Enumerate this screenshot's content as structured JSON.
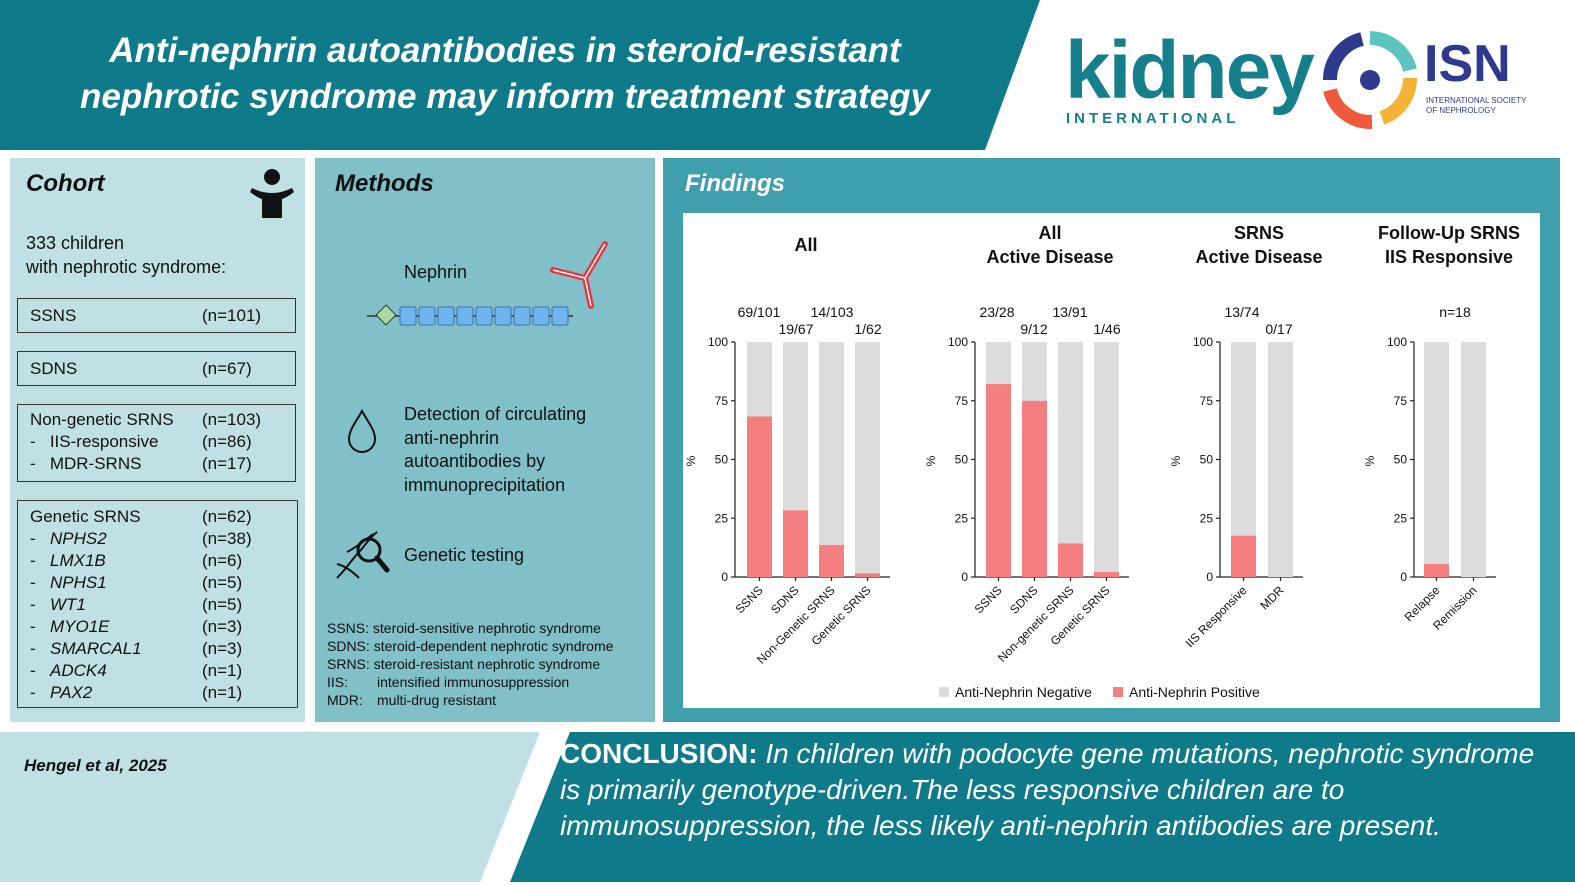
{
  "header": {
    "title_line1": "Anti-nephrin autoantibodies in steroid-resistant",
    "title_line2": "nephrotic syndrome may inform treatment strategy",
    "logo_kidney": "kidney",
    "logo_kidney_sub": "INTERNATIONAL",
    "logo_isn": "ISN",
    "logo_isn_sub1": "INTERNATIONAL SOCIETY",
    "logo_isn_sub2": "OF NEPHROLOGY"
  },
  "cohort": {
    "title": "Cohort",
    "intro_line1": "333 children",
    "intro_line2": "with nephrotic syndrome:",
    "ssns": {
      "label": "SSNS",
      "n": "(n=101)"
    },
    "sdns": {
      "label": "SDNS",
      "n": "(n=67)"
    },
    "nongenetic": [
      {
        "label": "Non-genetic SRNS",
        "n": "(n=103)"
      },
      {
        "label": "-   IIS-responsive",
        "n": "(n=86)"
      },
      {
        "label": "-   MDR-SRNS",
        "n": "(n=17)"
      }
    ],
    "genetic_header": {
      "label": "Genetic SRNS",
      "n": "(n=62)"
    },
    "genetic": [
      {
        "gene": "NPHS2",
        "n": "(n=38)"
      },
      {
        "gene": "LMX1B",
        "n": "(n=6)"
      },
      {
        "gene": "NPHS1",
        "n": "(n=5)"
      },
      {
        "gene": "WT1",
        "n": "(n=5)"
      },
      {
        "gene": "MYO1E",
        "n": "(n=3)"
      },
      {
        "gene": "SMARCAL1",
        "n": "(n=3)"
      },
      {
        "gene": "ADCK4",
        "n": "(n=1)"
      },
      {
        "gene": "PAX2",
        "n": "(n=1)"
      }
    ],
    "dash": "-"
  },
  "methods": {
    "title": "Methods",
    "nephrin_label": "Nephrin",
    "detection_lines": [
      "Detection of circulating",
      "anti-nephrin",
      "autoantibodies by",
      "immunoprecipitation"
    ],
    "genetic_testing": "Genetic testing",
    "abbreviations": [
      {
        "k": "SSNS:",
        "v": "steroid-sensitive nephrotic syndrome"
      },
      {
        "k": "SDNS:",
        "v": "steroid-dependent nephrotic syndrome"
      },
      {
        "k": "SRNS:",
        "v": "steroid-resistant nephrotic syndrome"
      },
      {
        "k": "IIS:",
        "v": "intensified immunosuppression"
      },
      {
        "k": "MDR:",
        "v": "multi-drug resistant"
      }
    ]
  },
  "findings": {
    "title": "Findings",
    "legend": {
      "negative": "Anti-Nephrin Negative",
      "positive": "Anti-Nephrin Positive"
    },
    "colors": {
      "negative": "#dcdcdc",
      "positive": "#f47f81"
    }
  },
  "chart_data": [
    {
      "type": "bar",
      "title": "All",
      "ylabel": "%",
      "ylim": [
        0,
        100
      ],
      "yticks": [
        0,
        25,
        50,
        75,
        100
      ],
      "categories": [
        "SSNS",
        "SDNS",
        "Non-Genetic SRNS",
        "Genetic SRNS"
      ],
      "labels": [
        "69/101",
        "19/67",
        "14/103",
        "1/62"
      ],
      "series": [
        {
          "name": "Anti-Nephrin Positive",
          "values": [
            68.3,
            28.4,
            13.6,
            1.6
          ]
        },
        {
          "name": "Anti-Nephrin Negative",
          "values": [
            31.7,
            71.6,
            86.4,
            98.4
          ]
        }
      ]
    },
    {
      "type": "bar",
      "title": "All\nActive Disease",
      "ylabel": "%",
      "ylim": [
        0,
        100
      ],
      "yticks": [
        0,
        25,
        50,
        75,
        100
      ],
      "categories": [
        "SSNS",
        "SDNS",
        "Non-genetic SRNS",
        "Genetic SRNS"
      ],
      "labels": [
        "23/28",
        "9/12",
        "13/91",
        "1/46"
      ],
      "series": [
        {
          "name": "Anti-Nephrin Positive",
          "values": [
            82.1,
            75.0,
            14.3,
            2.2
          ]
        },
        {
          "name": "Anti-Nephrin Negative",
          "values": [
            17.9,
            25.0,
            85.7,
            97.8
          ]
        }
      ]
    },
    {
      "type": "bar",
      "title": "SRNS\nActive Disease",
      "ylabel": "%",
      "ylim": [
        0,
        100
      ],
      "yticks": [
        0,
        25,
        50,
        75,
        100
      ],
      "categories": [
        "IIS Responsive",
        "MDR"
      ],
      "labels": [
        "13/74",
        "0/17"
      ],
      "series": [
        {
          "name": "Anti-Nephrin Positive",
          "values": [
            17.6,
            0
          ]
        },
        {
          "name": "Anti-Nephrin Negative",
          "values": [
            82.4,
            100
          ]
        }
      ]
    },
    {
      "type": "bar",
      "title": "Follow-Up SRNS\nIIS Responsive",
      "ylabel": "%",
      "ylim": [
        0,
        100
      ],
      "yticks": [
        0,
        25,
        50,
        75,
        100
      ],
      "categories": [
        "Relapse",
        "Remission"
      ],
      "labels": [
        "n=18"
      ],
      "series": [
        {
          "name": "Anti-Nephrin Positive",
          "values": [
            5.6,
            0
          ]
        },
        {
          "name": "Anti-Nephrin Negative",
          "values": [
            94.4,
            100
          ]
        }
      ]
    }
  ],
  "footer": {
    "citation": "Hengel et al, 2025",
    "conclusion_label": "CONCLUSION:",
    "conclusion_text": "In children with podocyte gene mutations, nephrotic syndrome is primarily genotype-driven.The less responsive children are to immunosuppression, the less likely anti-nephrin antibodies are present."
  }
}
